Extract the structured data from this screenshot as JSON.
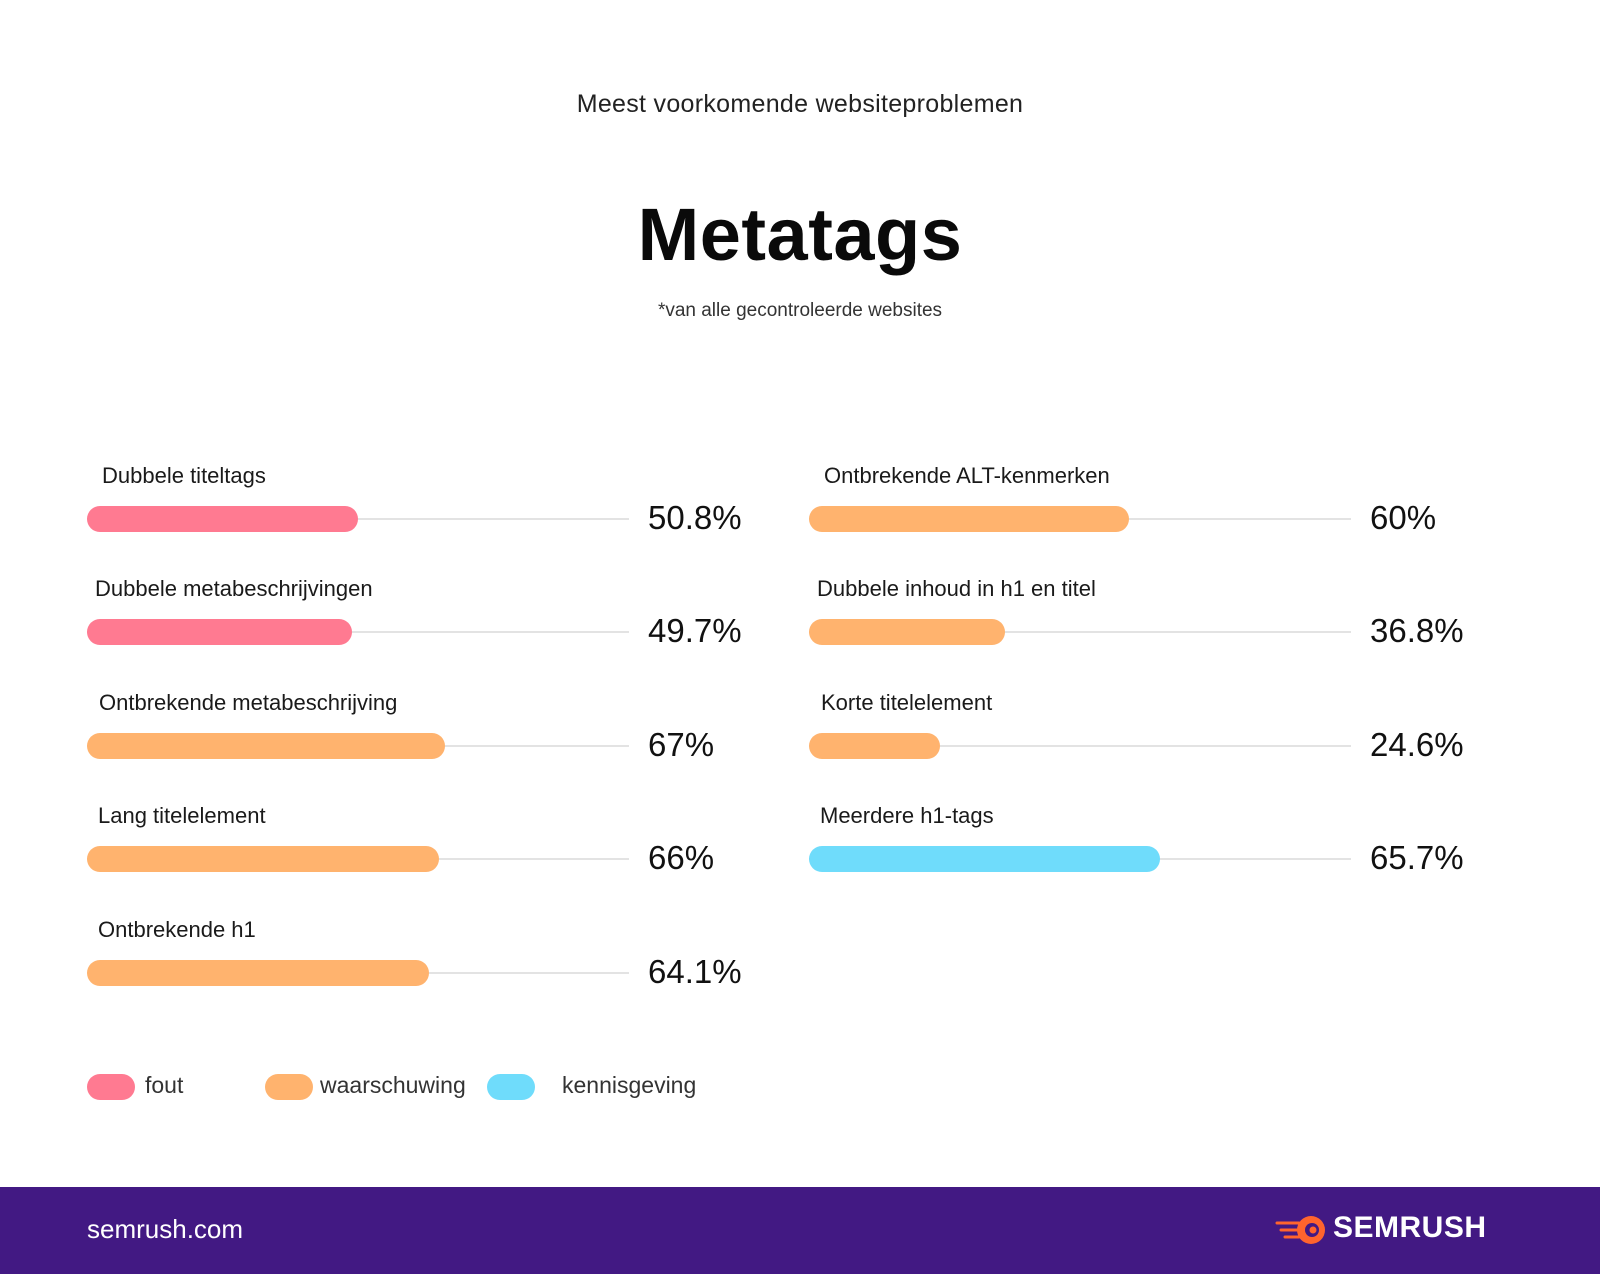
{
  "header": {
    "subtitle": "Meest voorkomende websiteproblemen",
    "title": "Metatags",
    "note": "*van alle gecontroleerde websites"
  },
  "colors": {
    "fout": "#ff7a91",
    "waarschuwing": "#ffb36e",
    "kennisgeving": "#6fdcfb",
    "footer_bg": "#421983"
  },
  "chart_data": {
    "type": "bar",
    "orientation": "horizontal",
    "xlim": [
      0,
      100
    ],
    "unit": "%",
    "items": [
      {
        "label": "Dubbele titeltags",
        "value": 50.8,
        "display": "50.8%",
        "category": "fout"
      },
      {
        "label": "Dubbele metabeschrijvingen",
        "value": 49.7,
        "display": "49.7%",
        "category": "fout"
      },
      {
        "label": "Ontbrekende metabeschrijving",
        "value": 67,
        "display": "67%",
        "category": "waarschuwing"
      },
      {
        "label": "Lang titelelement",
        "value": 66,
        "display": "66%",
        "category": "waarschuwing"
      },
      {
        "label": "Ontbrekende h1",
        "value": 64.1,
        "display": "64.1%",
        "category": "waarschuwing"
      },
      {
        "label": "Ontbrekende ALT-kenmerken",
        "value": 60,
        "display": "60%",
        "category": "waarschuwing"
      },
      {
        "label": "Dubbele inhoud in h1 en titel",
        "value": 36.8,
        "display": "36.8%",
        "category": "waarschuwing"
      },
      {
        "label": "Korte titelelement",
        "value": 24.6,
        "display": "24.6%",
        "category": "waarschuwing"
      },
      {
        "label": "Meerdere h1-tags",
        "value": 65.7,
        "display": "65.7%",
        "category": "kennisgeving"
      }
    ],
    "legend": [
      {
        "key": "fout",
        "label": "fout"
      },
      {
        "key": "waarschuwing",
        "label": "waarschuwing"
      },
      {
        "key": "kennisgeving",
        "label": "kennisgeving"
      }
    ]
  },
  "footer": {
    "url": "semrush.com",
    "brand": "SEMRUSH",
    "logo_icon": "semrush-fireball-icon"
  }
}
